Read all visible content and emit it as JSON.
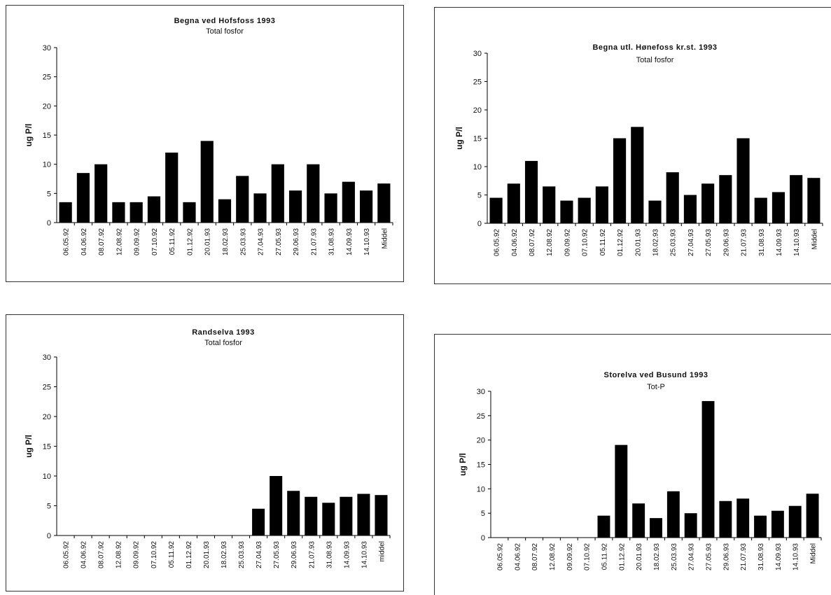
{
  "chart_data": [
    {
      "type": "bar",
      "title": "Begna ved Hofsfoss 1993",
      "subtitle": "Total fosfor",
      "xlabel": "",
      "ylabel": "ug P/l",
      "ylim": [
        0,
        30
      ],
      "yticks": [
        "0",
        "5",
        "10",
        "15",
        "20",
        "25",
        "30"
      ],
      "categories": [
        "06.05.92",
        "04.06.92",
        "08.07.92",
        "12.08.92",
        "09.09.92",
        "07.10.92",
        "05.11.92",
        "01.12.92",
        "20.01.93",
        "18.02.93",
        "25.03.93",
        "27.04.93",
        "27.05.93",
        "29.06.93",
        "21.07.93",
        "31.08.93",
        "14.09.93",
        "14.10.93",
        "Middel"
      ],
      "values": [
        3.5,
        8.5,
        10,
        3.5,
        3.5,
        4.5,
        12,
        3.5,
        14,
        4,
        8,
        5,
        10,
        5.5,
        10,
        5,
        7,
        5.5,
        6.7
      ],
      "grid": false,
      "legend": "none"
    },
    {
      "type": "bar",
      "title": "Begna utl. Hønefoss kr.st. 1993",
      "subtitle": "Total fosfor",
      "xlabel": "",
      "ylabel": "ug P/l",
      "ylim": [
        0,
        30
      ],
      "yticks": [
        "0",
        "5",
        "10",
        "15",
        "20",
        "25",
        "30"
      ],
      "categories": [
        "06.05.92",
        "04.06.92",
        "08.07.92",
        "12.08.92",
        "09.09.92",
        "07.10.92",
        "05.11.92",
        "01.12.92",
        "20.01.93",
        "18.02.93",
        "25.03.93",
        "27.04.93",
        "27.05.93",
        "29.06.93",
        "21.07.93",
        "31.08.93",
        "14.09.93",
        "14.10.93",
        "Middel"
      ],
      "values": [
        4.5,
        7,
        11,
        6.5,
        4,
        4.5,
        6.5,
        15,
        17,
        4,
        9,
        5,
        7,
        8.5,
        15,
        4.5,
        5.5,
        8.5,
        8
      ],
      "grid": false,
      "legend": "none"
    },
    {
      "type": "bar",
      "title": "Randselva 1993",
      "subtitle": "Total fosfor",
      "xlabel": "",
      "ylabel": "ug P/l",
      "ylim": [
        0,
        30
      ],
      "yticks": [
        "0",
        "5",
        "10",
        "15",
        "20",
        "25",
        "30"
      ],
      "categories": [
        "06.05.92",
        "04.06.92",
        "08.07.92",
        "12.08.92",
        "09.09.92",
        "07.10.92",
        "05.11.92",
        "01.12.92",
        "20.01.93",
        "18.02.93",
        "25.03.93",
        "27.04.93",
        "27.05.93",
        "29.06.93",
        "21.07.93",
        "31.08.93",
        "14.09.93",
        "14.10.93",
        "middel"
      ],
      "values": [
        0,
        0,
        0,
        0,
        0,
        0,
        0,
        0,
        0,
        0,
        0,
        4.5,
        10,
        7.5,
        6.5,
        5.5,
        6.5,
        7,
        6.8
      ],
      "grid": false,
      "legend": "none"
    },
    {
      "type": "bar",
      "title": "Storelva ved Busund 1993",
      "subtitle": "Tot-P",
      "xlabel": "",
      "ylabel": "ug P/l",
      "ylim": [
        0,
        30
      ],
      "yticks": [
        "0",
        "5",
        "10",
        "15",
        "20",
        "25",
        "30"
      ],
      "categories": [
        "06.05.92",
        "04.06.92",
        "08.07.92",
        "12.08.92",
        "09.09.92",
        "07.10.92",
        "05.11.92",
        "01.12.92",
        "20.01.93",
        "18.02.93",
        "25.03.93",
        "27.04.93",
        "27.05.93",
        "29.06.93",
        "21.07.93",
        "31.08.93",
        "14.09.93",
        "14.10.93",
        "Middel"
      ],
      "values": [
        0,
        0,
        0,
        0,
        0,
        0,
        4.5,
        19,
        7,
        4,
        9.5,
        5,
        28,
        7.5,
        8,
        4.5,
        5.5,
        6.5,
        9
      ],
      "grid": false,
      "legend": "none"
    }
  ]
}
